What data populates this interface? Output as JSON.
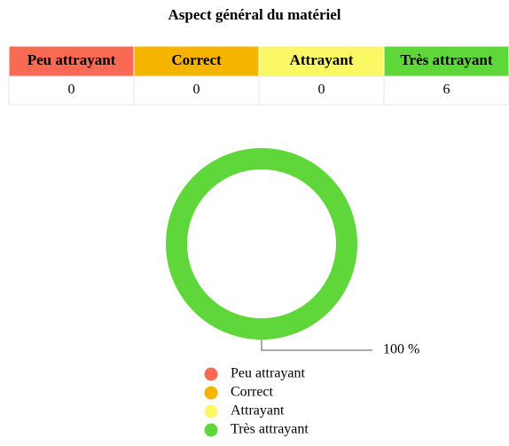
{
  "title": "Aspect général du matériel",
  "table": {
    "header": [
      "Peu attrayant",
      "Correct",
      "Attrayant",
      "Très attrayant"
    ],
    "rows": [
      [
        0,
        0,
        0,
        6
      ]
    ]
  },
  "chart_data": {
    "type": "donut",
    "categories": [
      "Peu attrayant",
      "Correct",
      "Attrayant",
      "Très attrayant"
    ],
    "values": [
      0,
      0,
      0,
      100
    ],
    "value_labels": [
      null,
      null,
      null,
      "100 %"
    ],
    "colors": [
      "#f96a55",
      "#f5b400",
      "#fbf866",
      "#5fd63a"
    ]
  }
}
